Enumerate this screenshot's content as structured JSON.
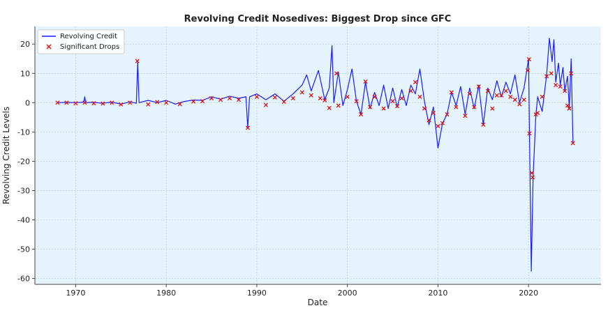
{
  "chart_data": {
    "type": "line",
    "title": "Revolving Credit Nosedives: Biggest Drop since GFC",
    "xlabel": "Date",
    "ylabel": "Revolving Credit Levels",
    "xlim": [
      1965.5,
      2028.0
    ],
    "ylim": [
      -62,
      26
    ],
    "x_ticks": [
      1970,
      1980,
      1990,
      2000,
      2010,
      2020
    ],
    "y_ticks": [
      -60,
      -50,
      -40,
      -30,
      -20,
      -10,
      0,
      10,
      20
    ],
    "grid": true,
    "legend_position": "top-left",
    "background_color": "#e5f4fc",
    "series": [
      {
        "name": "Revolving Credit",
        "style": "line",
        "color": "#1a1aff",
        "points": [
          [
            1968.0,
            0.0
          ],
          [
            1969.0,
            0.1
          ],
          [
            1970.0,
            0.0
          ],
          [
            1970.9,
            0.2
          ],
          [
            1971.0,
            2.0
          ],
          [
            1971.1,
            0.0
          ],
          [
            1972.0,
            0.1
          ],
          [
            1973.0,
            -0.2
          ],
          [
            1974.0,
            0.2
          ],
          [
            1975.0,
            -0.5
          ],
          [
            1976.0,
            0.3
          ],
          [
            1976.7,
            -0.2
          ],
          [
            1976.85,
            14.0
          ],
          [
            1977.0,
            0.0
          ],
          [
            1978.0,
            0.8
          ],
          [
            1979.0,
            0.0
          ],
          [
            1980.0,
            0.8
          ],
          [
            1981.0,
            -0.5
          ],
          [
            1982.0,
            0.4
          ],
          [
            1983.0,
            0.9
          ],
          [
            1984.0,
            0.8
          ],
          [
            1985.0,
            2.0
          ],
          [
            1986.0,
            1.2
          ],
          [
            1987.0,
            2.2
          ],
          [
            1988.0,
            1.5
          ],
          [
            1988.8,
            2.0
          ],
          [
            1989.0,
            -8.5
          ],
          [
            1989.2,
            2.0
          ],
          [
            1990.0,
            3.0
          ],
          [
            1991.0,
            1.0
          ],
          [
            1992.0,
            3.0
          ],
          [
            1993.0,
            0.5
          ],
          [
            1994.0,
            3.0
          ],
          [
            1995.0,
            6.0
          ],
          [
            1995.5,
            9.5
          ],
          [
            1996.0,
            4.0
          ],
          [
            1996.8,
            11.0
          ],
          [
            1997.5,
            1.0
          ],
          [
            1998.0,
            5.0
          ],
          [
            1998.3,
            19.5
          ],
          [
            1998.5,
            0.0
          ],
          [
            1999.0,
            10.5
          ],
          [
            1999.5,
            -1.0
          ],
          [
            2000.0,
            4.5
          ],
          [
            2000.5,
            11.5
          ],
          [
            2001.0,
            0.5
          ],
          [
            2001.5,
            -4.0
          ],
          [
            2002.0,
            7.0
          ],
          [
            2002.5,
            -2.0
          ],
          [
            2003.0,
            3.5
          ],
          [
            2003.5,
            -1.0
          ],
          [
            2004.0,
            6.0
          ],
          [
            2004.5,
            -2.0
          ],
          [
            2005.0,
            5.0
          ],
          [
            2005.5,
            -1.5
          ],
          [
            2006.0,
            4.5
          ],
          [
            2006.5,
            -1.0
          ],
          [
            2007.0,
            6.0
          ],
          [
            2007.5,
            3.0
          ],
          [
            2008.0,
            11.5
          ],
          [
            2008.5,
            0.5
          ],
          [
            2009.0,
            -7.5
          ],
          [
            2009.5,
            -1.5
          ],
          [
            2010.0,
            -15.5
          ],
          [
            2010.5,
            -7.0
          ],
          [
            2011.0,
            -4.0
          ],
          [
            2011.5,
            3.5
          ],
          [
            2012.0,
            -1.0
          ],
          [
            2012.5,
            5.5
          ],
          [
            2013.0,
            -4.0
          ],
          [
            2013.5,
            5.0
          ],
          [
            2014.0,
            -2.0
          ],
          [
            2014.5,
            6.0
          ],
          [
            2015.0,
            -7.5
          ],
          [
            2015.5,
            5.0
          ],
          [
            2016.0,
            1.0
          ],
          [
            2016.5,
            7.5
          ],
          [
            2017.0,
            2.0
          ],
          [
            2017.5,
            7.0
          ],
          [
            2018.0,
            3.0
          ],
          [
            2018.5,
            9.5
          ],
          [
            2019.0,
            0.0
          ],
          [
            2019.5,
            5.0
          ],
          [
            2019.8,
            11.0
          ],
          [
            2020.0,
            15.0
          ],
          [
            2020.1,
            -10.5
          ],
          [
            2020.3,
            -57.5
          ],
          [
            2020.5,
            -25.5
          ],
          [
            2020.8,
            -4.5
          ],
          [
            2021.0,
            2.0
          ],
          [
            2021.5,
            -3.0
          ],
          [
            2022.0,
            9.5
          ],
          [
            2022.3,
            22.0
          ],
          [
            2022.6,
            14.0
          ],
          [
            2022.8,
            21.5
          ],
          [
            2023.0,
            7.0
          ],
          [
            2023.3,
            13.5
          ],
          [
            2023.5,
            6.0
          ],
          [
            2023.8,
            12.0
          ],
          [
            2024.0,
            4.0
          ],
          [
            2024.3,
            9.0
          ],
          [
            2024.5,
            -2.0
          ],
          [
            2024.7,
            15.0
          ],
          [
            2024.8,
            1.0
          ],
          [
            2024.9,
            -13.5
          ]
        ]
      },
      {
        "name": "Significant Drops",
        "style": "scatter",
        "color": "#dd1111",
        "marker": "x",
        "points": [
          [
            1968.0,
            0.0
          ],
          [
            1969.0,
            0.0
          ],
          [
            1970.0,
            -0.2
          ],
          [
            1971.0,
            0.0
          ],
          [
            1972.0,
            -0.2
          ],
          [
            1973.0,
            -0.3
          ],
          [
            1974.0,
            0.0
          ],
          [
            1975.0,
            -0.6
          ],
          [
            1976.0,
            0.0
          ],
          [
            1976.8,
            14.2
          ],
          [
            1978.0,
            -0.6
          ],
          [
            1979.0,
            0.2
          ],
          [
            1980.0,
            0.0
          ],
          [
            1981.5,
            -0.5
          ],
          [
            1983.0,
            0.4
          ],
          [
            1984.0,
            0.5
          ],
          [
            1985.0,
            1.5
          ],
          [
            1986.0,
            1.0
          ],
          [
            1987.0,
            1.5
          ],
          [
            1988.0,
            1.0
          ],
          [
            1989.0,
            -8.6
          ],
          [
            1990.0,
            2.0
          ],
          [
            1991.0,
            -0.8
          ],
          [
            1992.0,
            1.8
          ],
          [
            1993.0,
            0.3
          ],
          [
            1994.0,
            1.5
          ],
          [
            1995.0,
            3.5
          ],
          [
            1996.0,
            2.5
          ],
          [
            1997.0,
            1.5
          ],
          [
            1997.5,
            0.8
          ],
          [
            1998.0,
            -1.8
          ],
          [
            1998.8,
            10.0
          ],
          [
            1999.0,
            -1.0
          ],
          [
            2000.0,
            2.0
          ],
          [
            2001.0,
            0.5
          ],
          [
            2001.5,
            -4.0
          ],
          [
            2002.0,
            7.2
          ],
          [
            2002.5,
            -1.5
          ],
          [
            2003.0,
            2.0
          ],
          [
            2004.0,
            -2.0
          ],
          [
            2005.0,
            0.5
          ],
          [
            2005.5,
            -1.2
          ],
          [
            2006.0,
            1.5
          ],
          [
            2007.0,
            4.0
          ],
          [
            2007.5,
            7.0
          ],
          [
            2008.0,
            2.0
          ],
          [
            2008.5,
            -2.0
          ],
          [
            2009.0,
            -6.0
          ],
          [
            2009.5,
            -3.5
          ],
          [
            2010.0,
            -8.0
          ],
          [
            2010.5,
            -7.0
          ],
          [
            2011.0,
            -4.0
          ],
          [
            2011.5,
            3.5
          ],
          [
            2012.0,
            -1.5
          ],
          [
            2013.0,
            -4.5
          ],
          [
            2013.5,
            3.0
          ],
          [
            2014.0,
            -1.5
          ],
          [
            2014.5,
            5.5
          ],
          [
            2015.0,
            -7.5
          ],
          [
            2015.5,
            4.0
          ],
          [
            2016.0,
            -2.0
          ],
          [
            2016.5,
            2.5
          ],
          [
            2017.0,
            2.5
          ],
          [
            2017.5,
            4.0
          ],
          [
            2018.0,
            2.0
          ],
          [
            2018.5,
            1.0
          ],
          [
            2019.0,
            -0.5
          ],
          [
            2019.5,
            1.0
          ],
          [
            2019.9,
            11.0
          ],
          [
            2020.05,
            14.8
          ],
          [
            2020.1,
            -10.5
          ],
          [
            2020.35,
            -24.0
          ],
          [
            2020.45,
            -25.5
          ],
          [
            2020.8,
            -4.0
          ],
          [
            2021.0,
            -3.5
          ],
          [
            2021.5,
            2.0
          ],
          [
            2022.0,
            9.0
          ],
          [
            2022.5,
            10.0
          ],
          [
            2023.0,
            6.0
          ],
          [
            2023.5,
            5.5
          ],
          [
            2024.0,
            4.0
          ],
          [
            2024.3,
            -1.0
          ],
          [
            2024.5,
            -2.0
          ],
          [
            2024.7,
            10.0
          ],
          [
            2024.9,
            -13.8
          ]
        ]
      }
    ]
  }
}
